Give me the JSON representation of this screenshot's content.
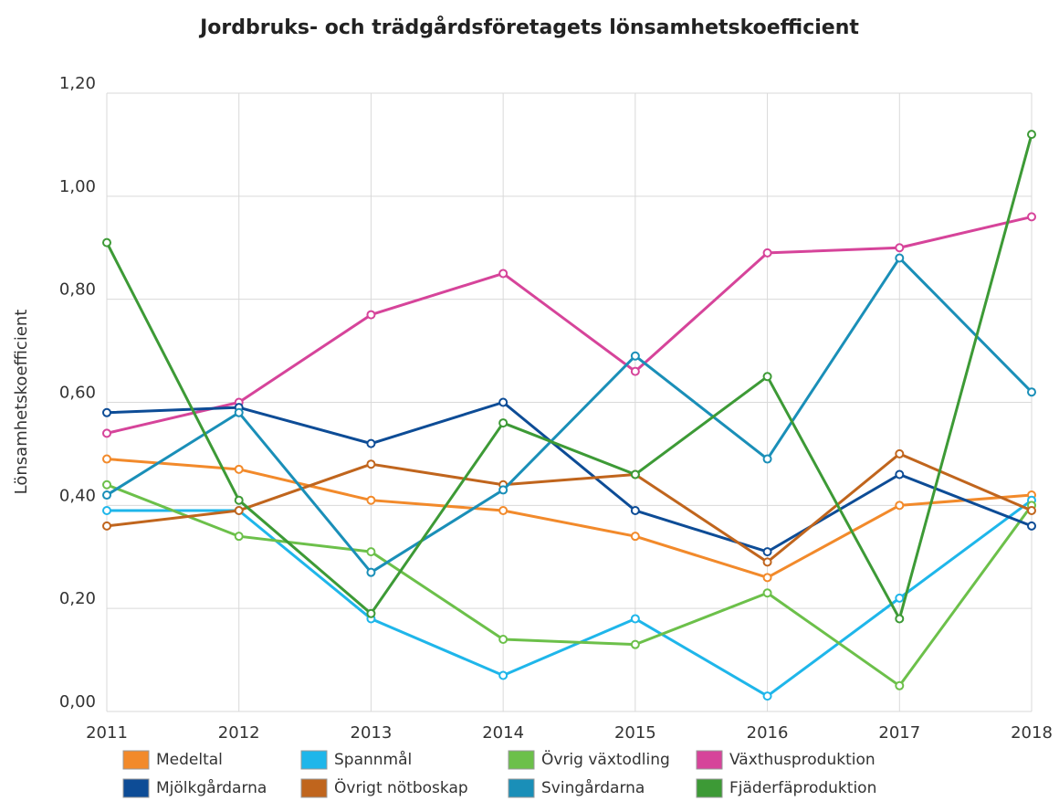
{
  "chart_data": {
    "type": "line",
    "title": "Jordbruks- och trädgårdsföretagets lönsamhetskoefficient",
    "y_label": "Lönsamhetskoefficient",
    "categories": [
      "2011",
      "2012",
      "2013",
      "2014",
      "2015",
      "2016",
      "2017",
      "2018"
    ],
    "ylim": [
      0,
      1.2
    ],
    "yticks": [
      {
        "value": 0,
        "label": "0,00"
      },
      {
        "value": 0.2,
        "label": "0,20"
      },
      {
        "value": 0.4,
        "label": "0,40"
      },
      {
        "value": 0.6,
        "label": "0,60"
      },
      {
        "value": 0.8,
        "label": "0,80"
      },
      {
        "value": 1.0,
        "label": "1,00"
      },
      {
        "value": 1.2,
        "label": "1,20"
      }
    ],
    "grid": true,
    "legend": "bottom",
    "series": [
      {
        "name": "Medeltal",
        "color": "#f28a2b",
        "values": [
          0.49,
          0.47,
          0.41,
          0.39,
          0.34,
          0.26,
          0.4,
          0.42
        ]
      },
      {
        "name": "Spannmål",
        "color": "#1fb6ea",
        "values": [
          0.39,
          0.39,
          0.18,
          0.07,
          0.18,
          0.03,
          0.22,
          0.41
        ]
      },
      {
        "name": "Övrig växtodling",
        "color": "#6cc04a",
        "values": [
          0.44,
          0.34,
          0.31,
          0.14,
          0.13,
          0.23,
          0.05,
          0.4
        ]
      },
      {
        "name": "Växthusproduktion",
        "color": "#d6449a",
        "values": [
          0.54,
          0.6,
          0.77,
          0.85,
          0.66,
          0.89,
          0.9,
          0.96
        ]
      },
      {
        "name": "Mjölkgårdarna",
        "color": "#0d4c96",
        "values": [
          0.58,
          0.59,
          0.52,
          0.6,
          0.39,
          0.31,
          0.46,
          0.36
        ]
      },
      {
        "name": "Övrigt nötboskap",
        "color": "#c0651d",
        "values": [
          0.36,
          0.39,
          0.48,
          0.44,
          0.46,
          0.29,
          0.5,
          0.39
        ]
      },
      {
        "name": "Svingårdarna",
        "color": "#1a8fb8",
        "values": [
          0.42,
          0.58,
          0.27,
          0.43,
          0.69,
          0.49,
          0.88,
          0.62
        ]
      },
      {
        "name": "Fjäderfäproduktion",
        "color": "#3d9a36",
        "values": [
          0.91,
          0.41,
          0.19,
          0.56,
          0.46,
          0.65,
          0.18,
          1.12
        ]
      }
    ]
  }
}
